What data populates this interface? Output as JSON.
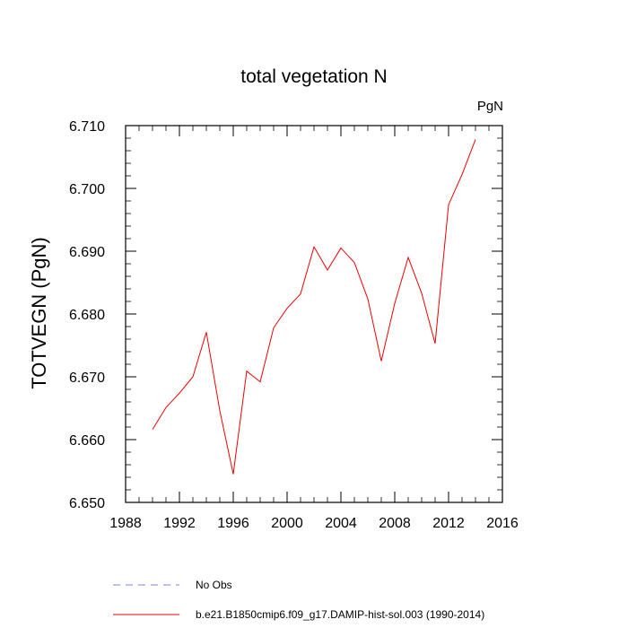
{
  "chart_data": {
    "type": "line",
    "title": "total vegetation N",
    "units": "PgN",
    "xlabel": "",
    "ylabel": "TOTVEGN  (PgN)",
    "xlim": [
      1988,
      2016
    ],
    "ylim": [
      6.65,
      6.71
    ],
    "x_ticks": [
      1988,
      1992,
      1996,
      2000,
      2004,
      2008,
      2012,
      2016
    ],
    "x_tick_labels": [
      "1988",
      "1992",
      "1996",
      "2000",
      "2004",
      "2008",
      "2012",
      "2016"
    ],
    "y_ticks": [
      6.65,
      6.66,
      6.67,
      6.68,
      6.69,
      6.7,
      6.71
    ],
    "y_tick_labels": [
      "6.650",
      "6.660",
      "6.670",
      "6.680",
      "6.690",
      "6.700",
      "6.710"
    ],
    "grid": false,
    "legend_position": "bottom",
    "series": [
      {
        "name": "No Obs",
        "color": "#7b7bff",
        "dash": "dashed",
        "x": [],
        "y": []
      },
      {
        "name": "b.e21.B1850cmip6.f09_g17.DAMIP-hist-sol.003 (1990-2014)",
        "color": "#ee0000",
        "dash": "solid",
        "x": [
          1990,
          1991,
          1992,
          1993,
          1994,
          1995,
          1996,
          1997,
          1998,
          1999,
          2000,
          2001,
          2002,
          2003,
          2004,
          2005,
          2006,
          2007,
          2008,
          2009,
          2010,
          2011,
          2012,
          2013,
          2014
        ],
        "y": [
          6.6616,
          6.6651,
          6.6674,
          6.67,
          6.6771,
          6.6646,
          6.6545,
          6.6709,
          6.6692,
          6.6778,
          6.6809,
          6.6832,
          6.6907,
          6.687,
          6.6905,
          6.6882,
          6.6824,
          6.6725,
          6.6817,
          6.689,
          6.6833,
          6.6753,
          6.6974,
          6.7022,
          6.7078
        ]
      }
    ]
  }
}
